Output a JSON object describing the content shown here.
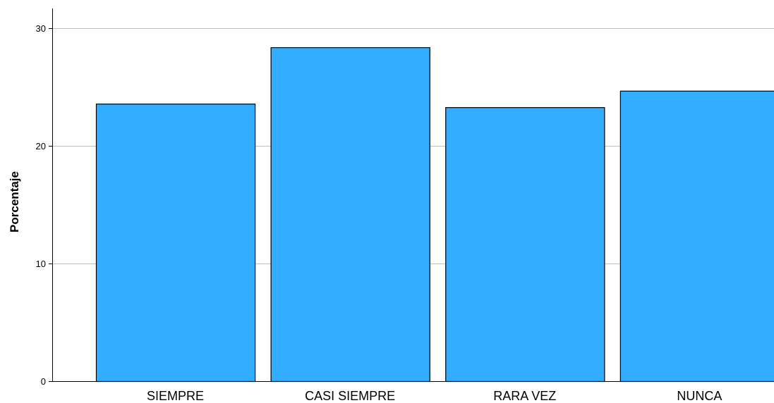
{
  "chart_data": {
    "type": "bar",
    "title": "",
    "xlabel": "",
    "ylabel": "Porcentaje",
    "categories": [
      "SIEMPRE",
      "CASI SIEMPRE",
      "RARA VEZ",
      "NUNCA"
    ],
    "values": [
      23.6,
      28.4,
      23.3,
      24.7
    ],
    "ylim": [
      0,
      31.7
    ],
    "yticks": [
      0,
      10,
      20,
      30
    ],
    "ytick_labels": [
      "0",
      "10",
      "20",
      "30"
    ],
    "grid": true,
    "legend": "none",
    "bar_color": "#33adff",
    "bar_edge_color": "#000000",
    "grid_color": "#bfbfbf"
  }
}
